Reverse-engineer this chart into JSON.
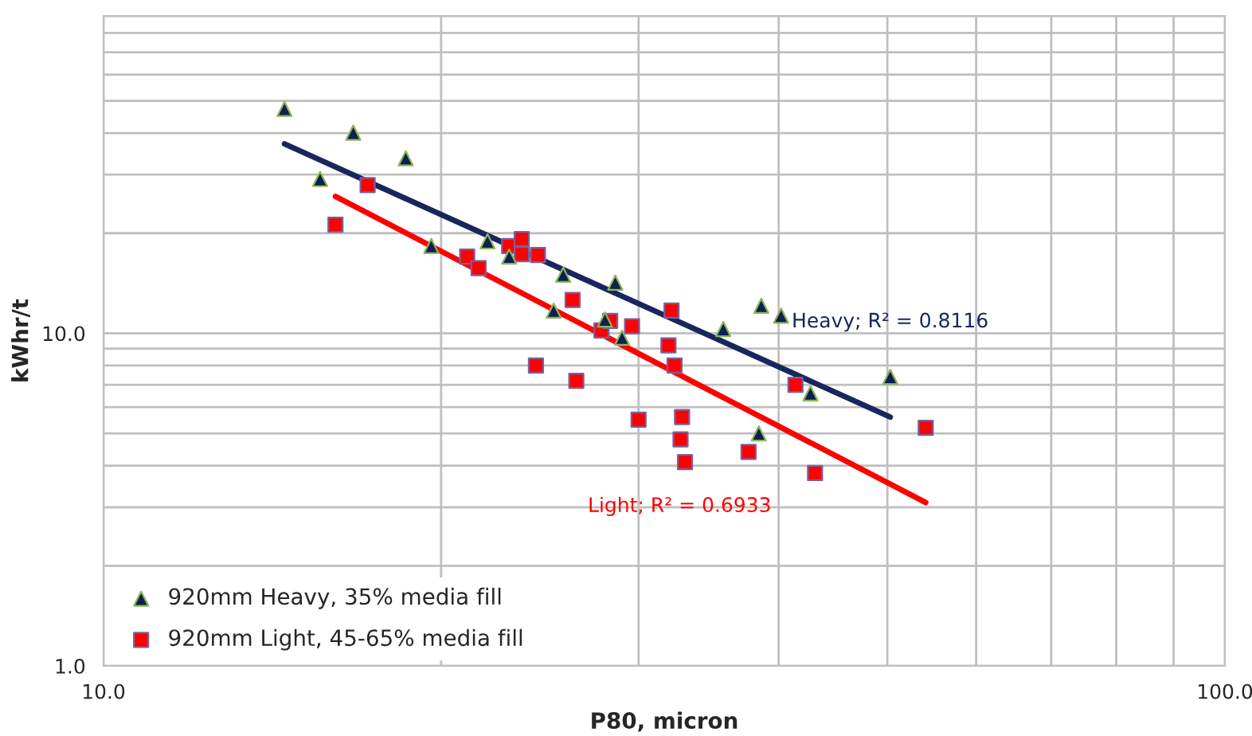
{
  "chart_data": {
    "type": "scatter",
    "xlabel": "P80, micron",
    "ylabel": "kWhr/t",
    "log": "xy",
    "xlim": [
      10,
      100
    ],
    "ylim": [
      1,
      90
    ],
    "xticks": [
      {
        "value": 10,
        "label": "10.0"
      },
      {
        "value": 20,
        "label": null
      },
      {
        "value": 30,
        "label": null
      },
      {
        "value": 40,
        "label": null
      },
      {
        "value": 50,
        "label": null
      },
      {
        "value": 60,
        "label": null
      },
      {
        "value": 70,
        "label": null
      },
      {
        "value": 80,
        "label": null
      },
      {
        "value": 90,
        "label": null
      },
      {
        "value": 100,
        "label": "100.0"
      }
    ],
    "yticks": [
      {
        "value": 1,
        "label": "1.0"
      },
      {
        "value": 2,
        "label": null
      },
      {
        "value": 3,
        "label": null
      },
      {
        "value": 4,
        "label": null
      },
      {
        "value": 5,
        "label": null
      },
      {
        "value": 6,
        "label": null
      },
      {
        "value": 7,
        "label": null
      },
      {
        "value": 8,
        "label": null
      },
      {
        "value": 9,
        "label": null
      },
      {
        "value": 10,
        "label": "10.0"
      },
      {
        "value": 20,
        "label": null
      },
      {
        "value": 30,
        "label": null
      },
      {
        "value": 40,
        "label": null
      },
      {
        "value": 50,
        "label": null
      },
      {
        "value": 60,
        "label": null
      },
      {
        "value": 70,
        "label": null
      },
      {
        "value": 80,
        "label": null
      },
      {
        "value": 90,
        "label": null
      }
    ],
    "grid": true,
    "legend": "bottom left",
    "series": [
      {
        "name": "920mm Heavy, 35% media fill",
        "marker": "triangle",
        "color": "#0d2050",
        "x": [
          14.5,
          15.6,
          16.7,
          18.6,
          19.6,
          22.0,
          23.0,
          25.7,
          25.2,
          28.6,
          28.0,
          29.0,
          35.7,
          38.6,
          40.2,
          42.7,
          38.4,
          50.3
        ],
        "values": [
          47.3,
          29.1,
          40.1,
          33.6,
          18.3,
          18.9,
          17.0,
          15.0,
          11.7,
          14.2,
          11.0,
          9.7,
          10.3,
          12.1,
          11.3,
          6.6,
          5.0,
          7.4
        ]
      },
      {
        "name": "920mm Light, 45-65% media fill",
        "marker": "square",
        "color": "#ff0000",
        "x": [
          17.2,
          16.1,
          21.1,
          21.6,
          23.0,
          23.6,
          23.6,
          24.4,
          26.2,
          27.8,
          28.3,
          29.6,
          24.3,
          26.4,
          32.1,
          31.9,
          32.3,
          30.0,
          32.8,
          32.7,
          33.0,
          37.6,
          41.4,
          43.1,
          54.1
        ],
        "values": [
          27.9,
          21.2,
          17.0,
          15.7,
          18.3,
          19.2,
          17.3,
          17.2,
          12.6,
          10.2,
          10.9,
          10.5,
          8.0,
          7.2,
          11.7,
          9.2,
          8.0,
          5.5,
          5.6,
          4.8,
          4.1,
          4.4,
          7.0,
          3.8,
          5.2
        ]
      },
      {
        "type": "line",
        "marker": "none",
        "line_style": "solid",
        "color": "#17275e",
        "x": [
          14.5,
          50.3
        ],
        "values": [
          37.1,
          5.6
        ]
      },
      {
        "type": "line",
        "marker": "none",
        "line_style": "solid",
        "color": "#ff0000",
        "x": [
          16.1,
          54.1
        ],
        "values": [
          25.8,
          3.1
        ]
      }
    ],
    "annotations": [
      "Heavy; R² = 0.8116",
      "Light; R² = 0.6933"
    ]
  }
}
